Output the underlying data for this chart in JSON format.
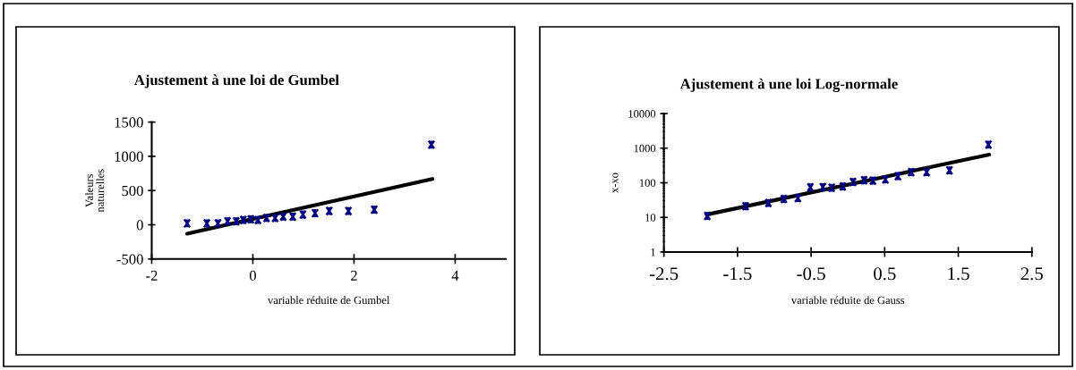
{
  "chart_data": [
    {
      "type": "scatter",
      "title": "Ajustement à une loi de Gumbel",
      "xlabel": "variable réduite de Gumbel",
      "ylabel": "Valeurs\nnaturelles",
      "xlim": [
        -2,
        5
      ],
      "xticks": [
        -2,
        0,
        2,
        4
      ],
      "ylim": [
        -500,
        1500
      ],
      "yticks": [
        -500,
        0,
        500,
        1000,
        1500
      ],
      "series": [
        {
          "marker": "cross",
          "color": "#000080",
          "x": [
            -1.3,
            -0.91,
            -0.69,
            -0.5,
            -0.33,
            -0.19,
            -0.04,
            0.1,
            0.27,
            0.44,
            0.6,
            0.79,
            0.99,
            1.23,
            1.51,
            1.89,
            2.4,
            3.53
          ],
          "values": [
            20,
            20,
            20,
            50,
            50,
            70,
            80,
            70,
            100,
            100,
            120,
            120,
            150,
            170,
            200,
            200,
            220,
            1170
          ]
        },
        {
          "type": "line",
          "color": "#000000",
          "x": [
            -1.3,
            3.55
          ],
          "values": [
            -130,
            670
          ]
        }
      ]
    },
    {
      "type": "scatter",
      "title": "Ajustement à une loi Log-normale",
      "xlabel": "variable réduite de Gauss",
      "ylabel": "x-xo",
      "log": "y",
      "xlim": [
        -2.5,
        2.5
      ],
      "xticks": [
        -2.5,
        -1.5,
        -0.5,
        0.5,
        1.5,
        2.5
      ],
      "ylim": [
        1,
        10000
      ],
      "yticks": [
        1,
        10,
        100,
        1000,
        10000
      ],
      "series": [
        {
          "marker": "cross",
          "color": "#000080",
          "x": [
            -1.91,
            -1.39,
            -1.08,
            -0.87,
            -0.68,
            -0.51,
            -0.34,
            -0.22,
            -0.07,
            0.07,
            0.22,
            0.34,
            0.51,
            0.68,
            0.86,
            1.07,
            1.38,
            1.91
          ],
          "values": [
            11,
            21,
            26,
            34,
            36,
            74,
            75,
            72,
            78,
            105,
            118,
            115,
            125,
            155,
            204,
            204,
            228,
            1260
          ]
        },
        {
          "type": "line",
          "color": "#000000",
          "x": [
            -1.92,
            1.92
          ],
          "values": [
            12,
            650
          ]
        }
      ]
    }
  ]
}
